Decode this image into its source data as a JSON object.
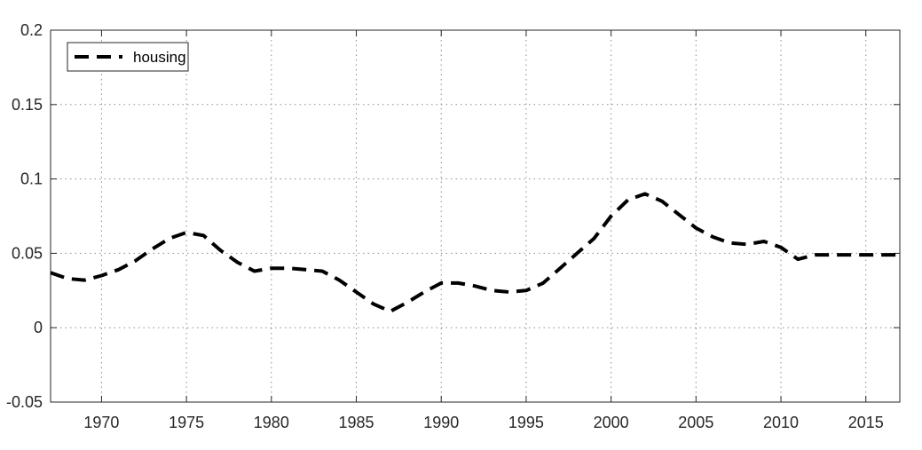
{
  "chart_data": {
    "type": "line",
    "title": "",
    "xlabel": "",
    "ylabel": "",
    "xlim": [
      1967,
      2017
    ],
    "ylim": [
      -0.05,
      0.2
    ],
    "grid": true,
    "legend_position": "top-left",
    "x_ticks": [
      "1970",
      "1975",
      "1980",
      "1985",
      "1990",
      "1995",
      "2000",
      "2005",
      "2010",
      "2015"
    ],
    "y_ticks": [
      "-0.05",
      "0",
      "0.05",
      "0.1",
      "0.15",
      "0.2"
    ],
    "series": [
      {
        "name": "housing",
        "color": "#000000",
        "style": "dashed",
        "x": [
          1967,
          1968,
          1969,
          1970,
          1971,
          1972,
          1973,
          1974,
          1975,
          1976,
          1977,
          1978,
          1979,
          1980,
          1981,
          1982,
          1983,
          1984,
          1985,
          1986,
          1987,
          1988,
          1989,
          1990,
          1991,
          1992,
          1993,
          1994,
          1995,
          1996,
          1997,
          1998,
          1999,
          2000,
          2001,
          2002,
          2003,
          2004,
          2005,
          2006,
          2007,
          2008,
          2009,
          2010,
          2011,
          2012,
          2013,
          2014,
          2015,
          2016,
          2017
        ],
        "values": [
          0.037,
          0.033,
          0.032,
          0.035,
          0.039,
          0.045,
          0.053,
          0.06,
          0.064,
          0.062,
          0.052,
          0.044,
          0.038,
          0.04,
          0.04,
          0.039,
          0.038,
          0.032,
          0.024,
          0.016,
          0.011,
          0.017,
          0.024,
          0.03,
          0.03,
          0.028,
          0.025,
          0.024,
          0.025,
          0.03,
          0.04,
          0.05,
          0.06,
          0.075,
          0.086,
          0.09,
          0.085,
          0.076,
          0.067,
          0.061,
          0.057,
          0.056,
          0.058,
          0.054,
          0.046,
          0.049,
          0.049,
          0.049,
          0.049,
          0.049,
          0.049
        ]
      }
    ]
  }
}
